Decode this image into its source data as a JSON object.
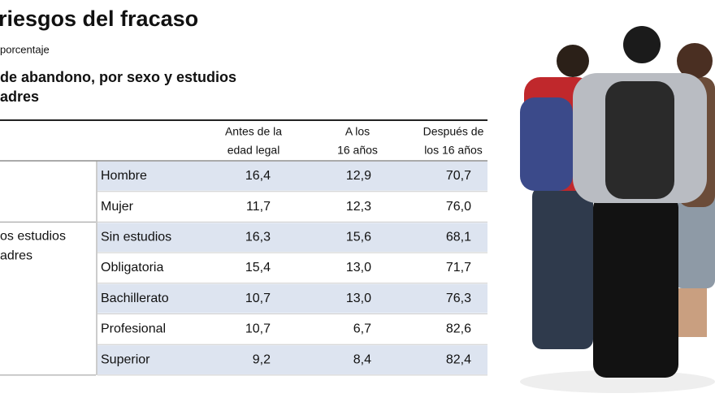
{
  "header": {
    "title": "riesgos del fracaso",
    "subtitle": "porcentaje",
    "subheading": [
      "de abandono, por sexo y estudios",
      "adres"
    ]
  },
  "table": {
    "columns": [
      [
        "Antes de la",
        "edad legal"
      ],
      [
        "A los",
        "16 años"
      ],
      [
        "Después de",
        "los 16 años"
      ]
    ],
    "groups": [
      {
        "label": [],
        "rows": [
          {
            "label": "Hombre",
            "values": [
              "16,4",
              "12,9",
              "70,7"
            ]
          },
          {
            "label": "Mujer",
            "values": [
              "11,7",
              "12,3",
              "76,0"
            ]
          }
        ]
      },
      {
        "label": [
          "os estudios",
          "adres"
        ],
        "rows": [
          {
            "label": "Sin estudios",
            "values": [
              "16,3",
              "15,6",
              "68,1"
            ]
          },
          {
            "label": "Obligatoria",
            "values": [
              "15,4",
              "13,0",
              "71,7"
            ]
          },
          {
            "label": "Bachillerato",
            "values": [
              "10,7",
              "13,0",
              "76,3"
            ]
          },
          {
            "label": "Profesional",
            "values": [
              "10,7",
              "6,7",
              "82,6"
            ]
          },
          {
            "label": "Superior",
            "values": [
              "9,2",
              "8,4",
              "82,4"
            ]
          }
        ]
      }
    ]
  }
}
